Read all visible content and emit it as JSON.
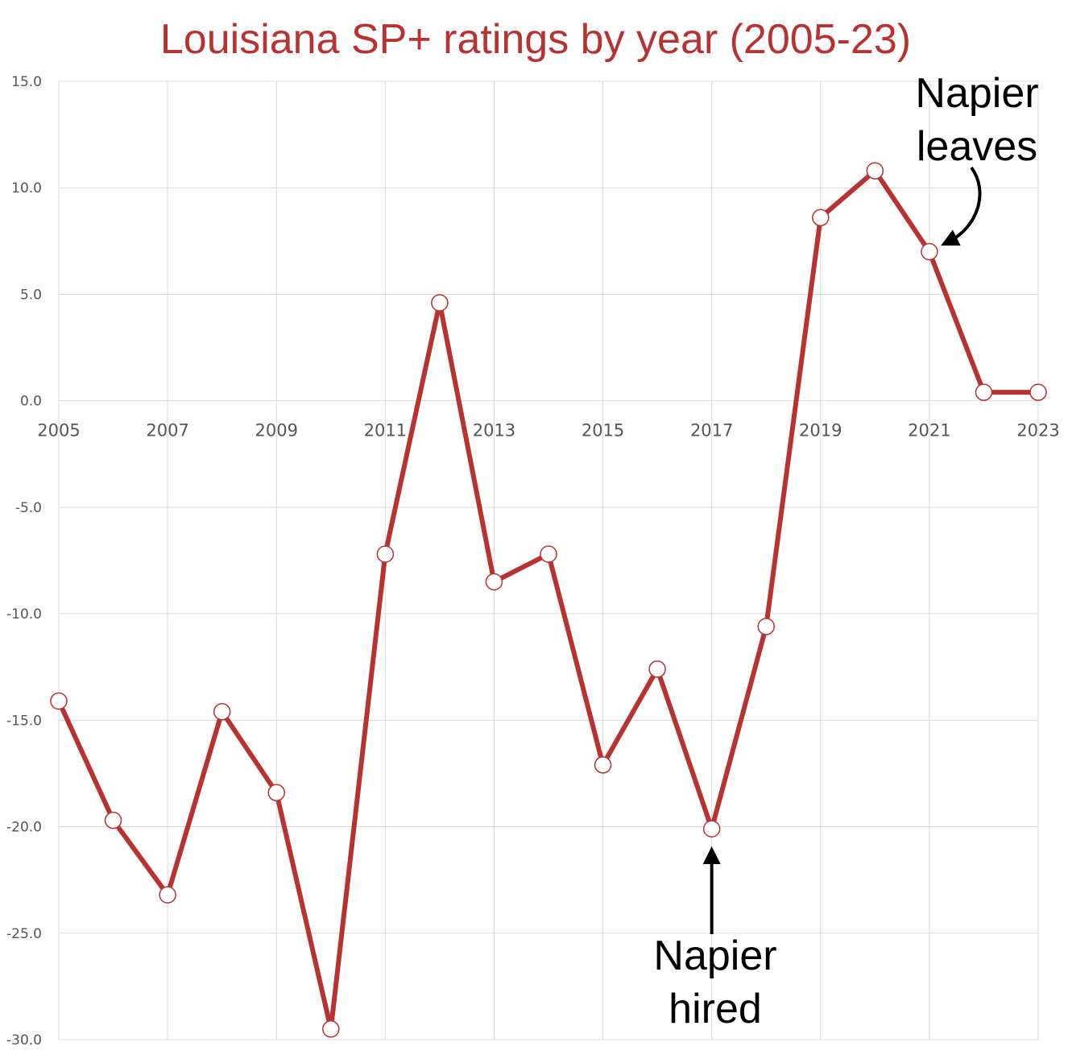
{
  "chart_data": {
    "type": "line",
    "title": "Louisiana SP+ ratings by year (2005-23)",
    "xlabel": "",
    "ylabel": "",
    "x": [
      2005,
      2006,
      2007,
      2008,
      2009,
      2010,
      2011,
      2012,
      2013,
      2014,
      2015,
      2016,
      2017,
      2018,
      2019,
      2020,
      2021,
      2022,
      2023
    ],
    "series": [
      {
        "values": [
          -14.1,
          -19.7,
          -23.2,
          -14.6,
          -18.4,
          -29.5,
          -7.2,
          4.6,
          -8.5,
          -7.2,
          -17.1,
          -12.6,
          -20.1,
          -10.6,
          8.6,
          10.8,
          7.0,
          0.4,
          0.4
        ]
      }
    ],
    "ylim": [
      -30,
      15
    ],
    "xlim": [
      2005,
      2023
    ],
    "y_ticks": [
      "15.0",
      "10.0",
      "5.0",
      "0.0",
      "-5.0",
      "-10.0",
      "-15.0",
      "-20.0",
      "-25.0",
      "-30.0"
    ],
    "x_ticks": [
      "2005",
      "2007",
      "2009",
      "2011",
      "2013",
      "2015",
      "2017",
      "2019",
      "2021",
      "2023"
    ],
    "grid": true,
    "annotations": [
      {
        "lines": [
          "Napier",
          "leaves"
        ],
        "year": 2021
      },
      {
        "lines": [
          "Napier",
          "hired"
        ],
        "year": 2017
      }
    ],
    "colors": {
      "line": "#b83232",
      "title": "#b83232",
      "marker_fill": "#ffffff",
      "grid": "#d9d9d9",
      "annotation": "#000000"
    }
  }
}
